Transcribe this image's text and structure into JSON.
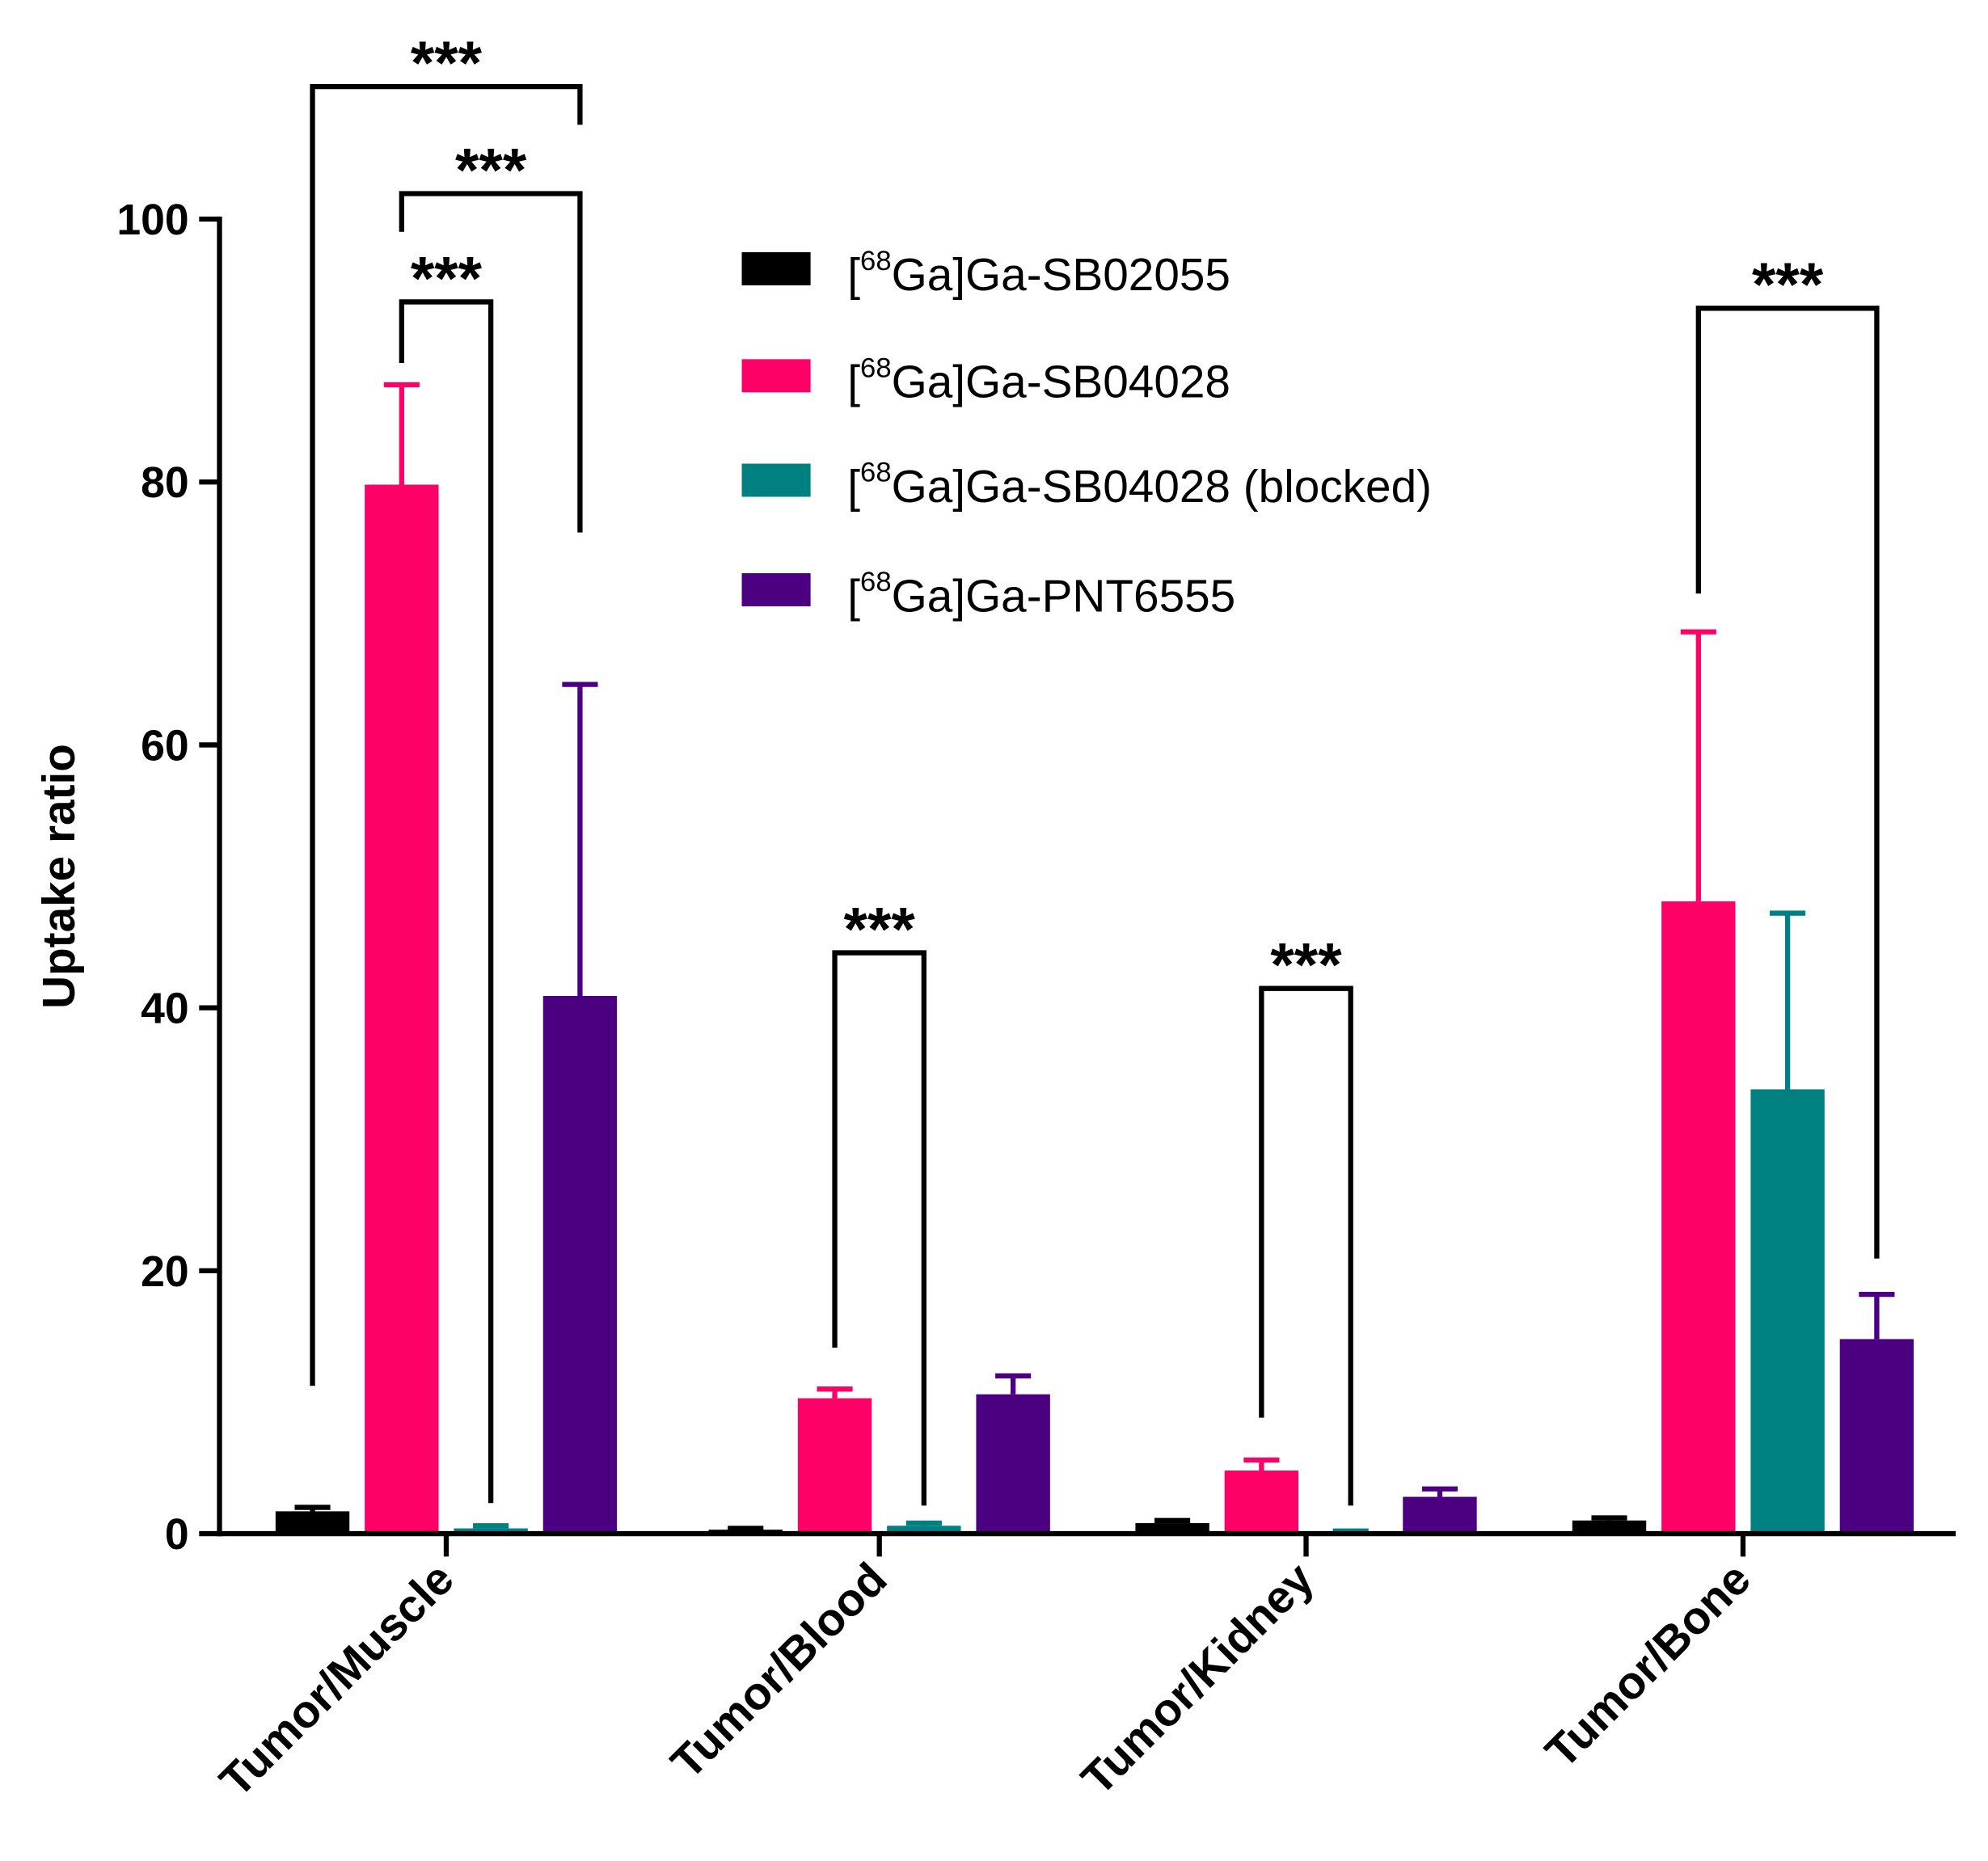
{
  "chart_data": {
    "type": "bar",
    "title": "",
    "xlabel": "",
    "ylabel": "Uptake ratio",
    "ylim": [
      0,
      100
    ],
    "yticks": [
      0,
      20,
      40,
      60,
      80,
      100
    ],
    "grid": false,
    "legend_placement": "top-right",
    "categories": [
      "Tumor/Muscle",
      "Tumor/Blood",
      "Tumor/Kidney",
      "Tumor/Bone"
    ],
    "series": [
      {
        "name": "[68Ga]Ga-SB02055",
        "prefix": "[",
        "sup": "68",
        "suffix": "Ga]Ga-SB02055",
        "color": "#000000",
        "values": [
          1.7,
          0.3,
          0.8,
          1.0
        ],
        "errors_upper": [
          2.0,
          0.4,
          1.0,
          1.2
        ]
      },
      {
        "name": "[68Ga]Ga-SB04028",
        "prefix": "[",
        "sup": "68",
        "suffix": "Ga]Ga-SB04028",
        "color": "#ff0066",
        "values": [
          79.8,
          10.3,
          4.8,
          48.1
        ],
        "errors_upper": [
          87.4,
          11.0,
          5.6,
          68.6
        ]
      },
      {
        "name": "[68Ga]Ga-SB04028 (blocked)",
        "prefix": "[",
        "sup": "68",
        "suffix": "Ga]Ga-SB04028 (blocked)",
        "color": "#008080",
        "values": [
          0.4,
          0.6,
          0.1,
          33.8
        ],
        "errors_upper": [
          0.6,
          0.8,
          0.2,
          47.2
        ]
      },
      {
        "name": "[68Ga]Ga-PNT6555",
        "prefix": "[",
        "sup": "68",
        "suffix": "Ga]Ga-PNT6555",
        "color": "#4b0082",
        "values": [
          40.9,
          10.6,
          2.8,
          14.8
        ],
        "errors_upper": [
          64.6,
          12.0,
          3.4,
          18.2
        ]
      }
    ],
    "annotations": [
      {
        "category": 0,
        "from": 0,
        "to": 3,
        "label": "***"
      },
      {
        "category": 0,
        "from": 1,
        "to": 3,
        "label": "***"
      },
      {
        "category": 0,
        "from": 1,
        "to": 2,
        "label": "***"
      },
      {
        "category": 1,
        "from": 1,
        "to": 2,
        "label": "***"
      },
      {
        "category": 2,
        "from": 1,
        "to": 2,
        "label": "***"
      },
      {
        "category": 3,
        "from": 1,
        "to": 3,
        "label": "***"
      }
    ]
  }
}
